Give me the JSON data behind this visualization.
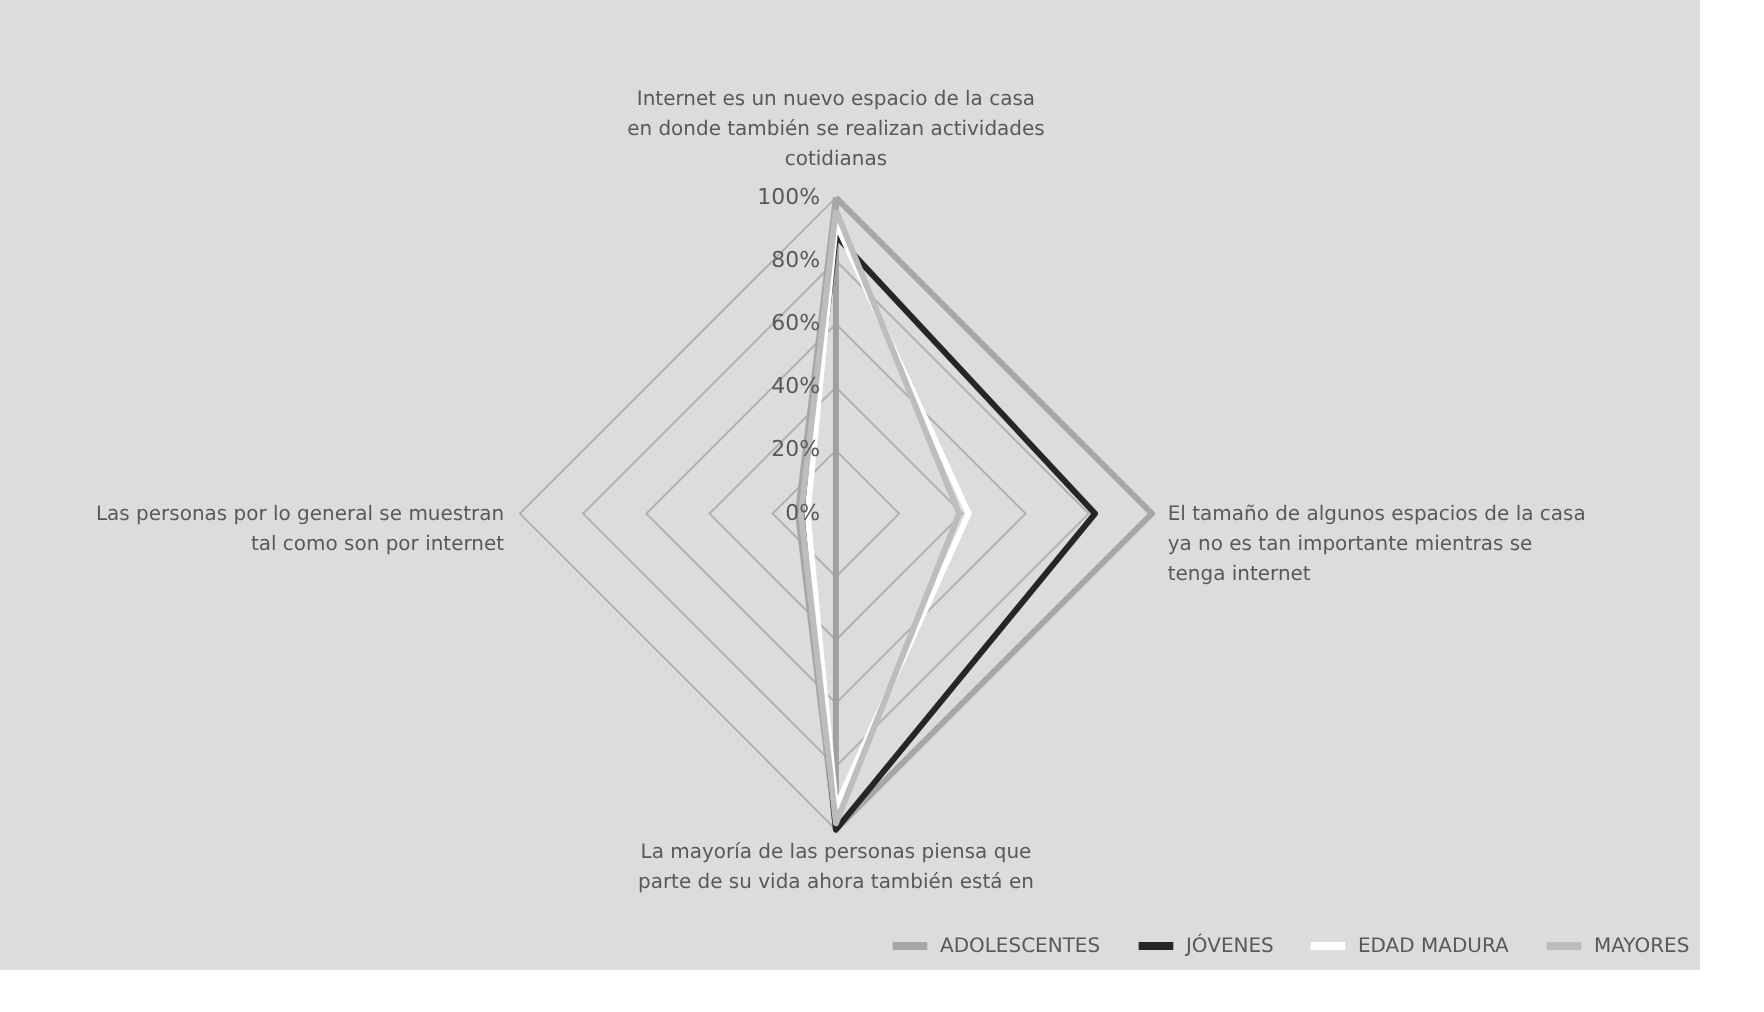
{
  "chart_data": {
    "type": "radar",
    "categories": [
      "Internet es un nuevo espacio de la casa en donde también se realizan actividades cotidianas",
      "El tamaño de algunos espacios de la casa ya no es tan importante mientras se tenga internet",
      "La mayoría de las personas piensa que parte de su vida ahora también está en",
      "Las personas por lo general se muestran tal como son por internet"
    ],
    "series": [
      {
        "name": "ADOLESCENTES",
        "color": "#a6a6a6",
        "values": [
          100,
          100,
          100,
          12
        ]
      },
      {
        "name": "JÓVENES",
        "color": "#262626",
        "values": [
          88,
          82,
          100,
          10
        ]
      },
      {
        "name": "EDAD MADURA",
        "color": "#ffffff",
        "values": [
          92,
          42,
          93,
          9
        ]
      },
      {
        "name": "MAYORES",
        "color": "#bdbdbd",
        "values": [
          96,
          39,
          98,
          11
        ]
      }
    ],
    "ylim": [
      0,
      100
    ],
    "yticks": [
      {
        "value": 0,
        "label": "0%"
      },
      {
        "value": 20,
        "label": "20%"
      },
      {
        "value": 40,
        "label": "40%"
      },
      {
        "value": 60,
        "label": "60%"
      },
      {
        "value": 80,
        "label": "80%"
      },
      {
        "value": 100,
        "label": "100%"
      }
    ],
    "grid": true,
    "legend": "bottom right"
  }
}
